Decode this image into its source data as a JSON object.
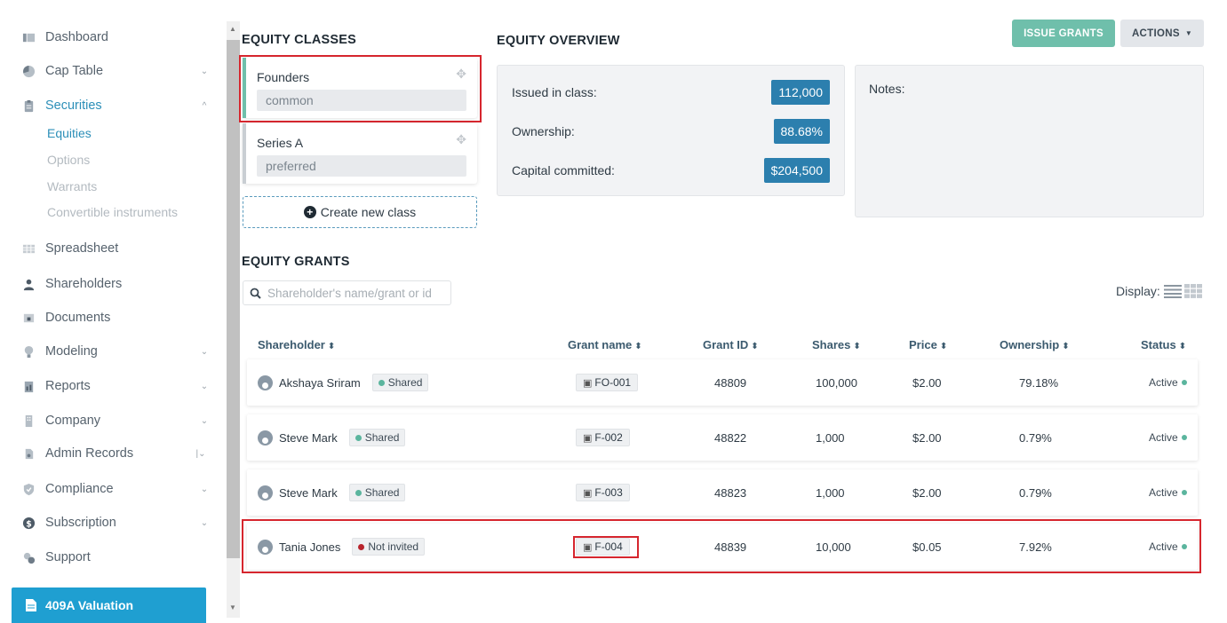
{
  "sidebar": {
    "items": [
      {
        "label": "Dashboard",
        "icon": "dashboard-icon",
        "chevron": ""
      },
      {
        "label": "Cap Table",
        "icon": "pie-chart-icon",
        "chevron": "⌄"
      },
      {
        "label": "Securities",
        "icon": "clipboard-icon",
        "chevron": "^"
      },
      {
        "label": "Spreadsheet",
        "icon": "spreadsheet-icon",
        "chevron": ""
      },
      {
        "label": "Shareholders",
        "icon": "user-icon",
        "chevron": ""
      },
      {
        "label": "Documents",
        "icon": "folder-icon",
        "chevron": ""
      },
      {
        "label": "Modeling",
        "icon": "lightbulb-icon",
        "chevron": "⌄"
      },
      {
        "label": "Reports",
        "icon": "report-icon",
        "chevron": "⌄"
      },
      {
        "label": "Company",
        "icon": "building-icon",
        "chevron": "⌄"
      },
      {
        "label": "Admin Records",
        "icon": "admin-records-icon",
        "chevron": "|⌄"
      },
      {
        "label": "Compliance",
        "icon": "shield-icon",
        "chevron": "⌄"
      },
      {
        "label": "Subscription",
        "icon": "dollar-icon",
        "chevron": "⌄"
      },
      {
        "label": "Support",
        "icon": "support-icon",
        "chevron": ""
      }
    ],
    "securities_sub": [
      "Equities",
      "Options",
      "Warrants",
      "Convertible instruments"
    ],
    "valuation_button": "409A Valuation"
  },
  "equity_classes": {
    "title": "EQUITY CLASSES",
    "classes": [
      {
        "name": "Founders",
        "type": "common",
        "color": "#6fbfab"
      },
      {
        "name": "Series A",
        "type": "preferred",
        "color": "#c9ced3"
      }
    ],
    "create_label": "Create new class"
  },
  "overview": {
    "title": "EQUITY OVERVIEW",
    "issued_label": "Issued in class:",
    "issued_value": "112,000",
    "ownership_label": "Ownership:",
    "ownership_value": "88.68%",
    "capital_label": "Capital committed:",
    "capital_value": "$204,500",
    "notes_label": "Notes:"
  },
  "toolbar": {
    "issue_grants": "ISSUE GRANTS",
    "actions": "ACTIONS"
  },
  "grants": {
    "title": "EQUITY GRANTS",
    "search_placeholder": "Shareholder's name/grant or id",
    "display_label": "Display:",
    "columns": [
      "Shareholder",
      "Grant name",
      "Grant ID",
      "Shares",
      "Price",
      "Ownership",
      "Status"
    ],
    "rows": [
      {
        "shareholder": "Akshaya Sriram",
        "badge": "Shared",
        "badge_color": "#5bb59e",
        "grant_name": "FO-001",
        "grant_id": "48809",
        "shares": "100,000",
        "price": "$2.00",
        "ownership": "79.18%",
        "status": "Active"
      },
      {
        "shareholder": "Steve Mark",
        "badge": "Shared",
        "badge_color": "#5bb59e",
        "grant_name": "F-002",
        "grant_id": "48822",
        "shares": "1,000",
        "price": "$2.00",
        "ownership": "0.79%",
        "status": "Active"
      },
      {
        "shareholder": "Steve Mark",
        "badge": "Shared",
        "badge_color": "#5bb59e",
        "grant_name": "F-003",
        "grant_id": "48823",
        "shares": "1,000",
        "price": "$2.00",
        "ownership": "0.79%",
        "status": "Active"
      },
      {
        "shareholder": "Tania Jones",
        "badge": "Not invited",
        "badge_color": "#b8242c",
        "grant_name": "F-004",
        "grant_id": "48839",
        "shares": "10,000",
        "price": "$0.05",
        "ownership": "7.92%",
        "status": "Active"
      }
    ]
  },
  "colors": {
    "accent": "#1f9fd1",
    "value_badge": "#2c7fae",
    "issue_button": "#6fbfab",
    "highlight_box": "#d6262e",
    "status_active": "#5bb59e"
  }
}
